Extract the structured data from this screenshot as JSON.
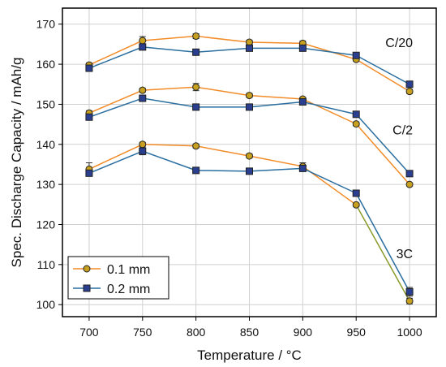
{
  "chart_data": {
    "type": "line",
    "xlabel": "Temperature  /  °C",
    "ylabel": "Spec. Discharge Capacity  /  mAh/g",
    "x": [
      700,
      750,
      800,
      850,
      900,
      950,
      1000
    ],
    "xlim": [
      675,
      1025
    ],
    "ylim": [
      97,
      174
    ],
    "xticks": [
      700,
      750,
      800,
      850,
      900,
      950,
      1000
    ],
    "yticks": [
      100,
      110,
      120,
      130,
      140,
      150,
      160,
      170
    ],
    "grid": true,
    "legend_position": "bottom-left",
    "legend": [
      {
        "label": "0.1 mm",
        "line_color": "#f28c28",
        "marker": "circle",
        "marker_color": "#c8a020"
      },
      {
        "label": "0.2 mm",
        "line_color": "#2a6ea0",
        "marker": "square",
        "marker_color": "#2a3f8f"
      }
    ],
    "series": [
      {
        "rate": "C/20",
        "thickness": "0.1 mm",
        "values": [
          159.8,
          165.9,
          167.0,
          165.5,
          165.2,
          161.2,
          153.2
        ],
        "errors": [
          0.5,
          1.0,
          0.6,
          0.5,
          0.6,
          0.4,
          0.5
        ]
      },
      {
        "rate": "C/20",
        "thickness": "0.2 mm",
        "values": [
          159.0,
          164.3,
          163.0,
          164.0,
          164.0,
          162.2,
          155.0
        ],
        "errors": [
          0.4,
          0.7,
          0.4,
          0.4,
          0.5,
          0.4,
          0.4
        ]
      },
      {
        "rate": "C/2",
        "thickness": "0.1 mm",
        "values": [
          147.8,
          153.5,
          154.3,
          152.2,
          151.3,
          145.1,
          130.0
        ],
        "errors": [
          0.6,
          0.5,
          0.9,
          0.5,
          0.4,
          0.5,
          0.4
        ]
      },
      {
        "rate": "C/2",
        "thickness": "0.2 mm",
        "values": [
          146.8,
          151.5,
          149.3,
          149.3,
          150.6,
          147.5,
          132.7
        ],
        "errors": [
          0.4,
          0.5,
          0.4,
          0.4,
          0.5,
          0.4,
          0.5
        ]
      },
      {
        "rate": "3C",
        "thickness": "0.1 mm",
        "values": [
          133.8,
          140.0,
          139.6,
          137.1,
          134.5,
          124.9,
          100.9
        ],
        "errors": [
          1.6,
          0.5,
          0.5,
          0.5,
          0.9,
          0.4,
          0.7
        ]
      },
      {
        "rate": "3C",
        "thickness": "0.2 mm",
        "values": [
          132.8,
          138.3,
          133.5,
          133.3,
          134.0,
          127.8,
          103.2
        ],
        "errors": [
          0.4,
          0.9,
          0.4,
          0.4,
          0.4,
          0.4,
          1.1
        ]
      }
    ],
    "annotations": [
      {
        "text": "C/20",
        "x": 1000,
        "y": 164.3
      },
      {
        "text": "C/2",
        "x": 1000,
        "y": 142.5
      },
      {
        "text": "3C",
        "x": 1000,
        "y": 111.6
      }
    ]
  }
}
